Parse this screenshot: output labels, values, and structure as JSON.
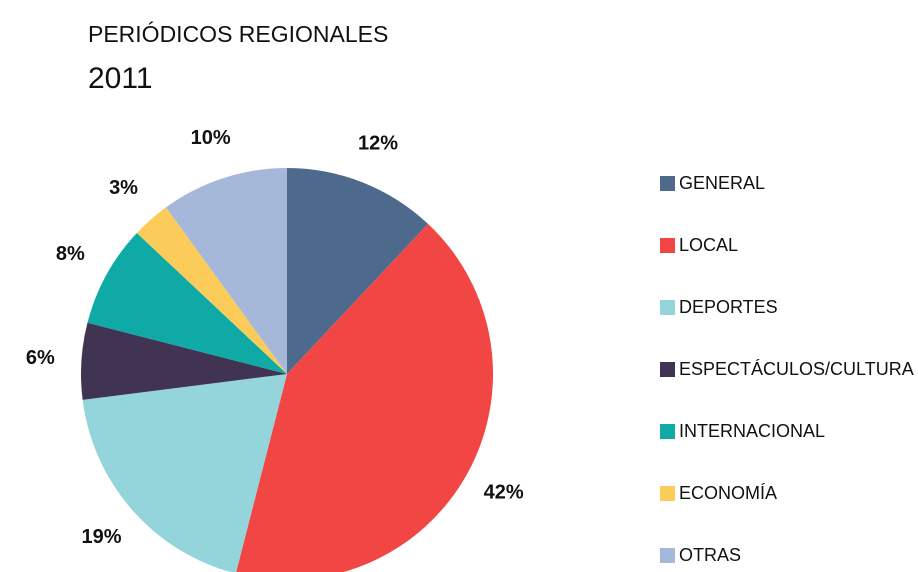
{
  "chart_data": {
    "type": "pie",
    "title": "PERIÓDICOS REGIONALES",
    "subtitle": "2011",
    "categories": [
      "GENERAL",
      "LOCAL",
      "DEPORTES",
      "ESPECTÁCULOS/CULTURA",
      "INTERNACIONAL",
      "ECONOMÍA",
      "OTRAS"
    ],
    "values": [
      12,
      42,
      19,
      6,
      8,
      3,
      10
    ],
    "value_labels": [
      "12%",
      "42%",
      "19%",
      "6%",
      "8%",
      "3%",
      "10%"
    ],
    "colors": [
      "#4d6a8c",
      "#f24645",
      "#94d4db",
      "#413452",
      "#10aaa6",
      "#fccc5a",
      "#a6b8d9"
    ],
    "legend": "right"
  }
}
